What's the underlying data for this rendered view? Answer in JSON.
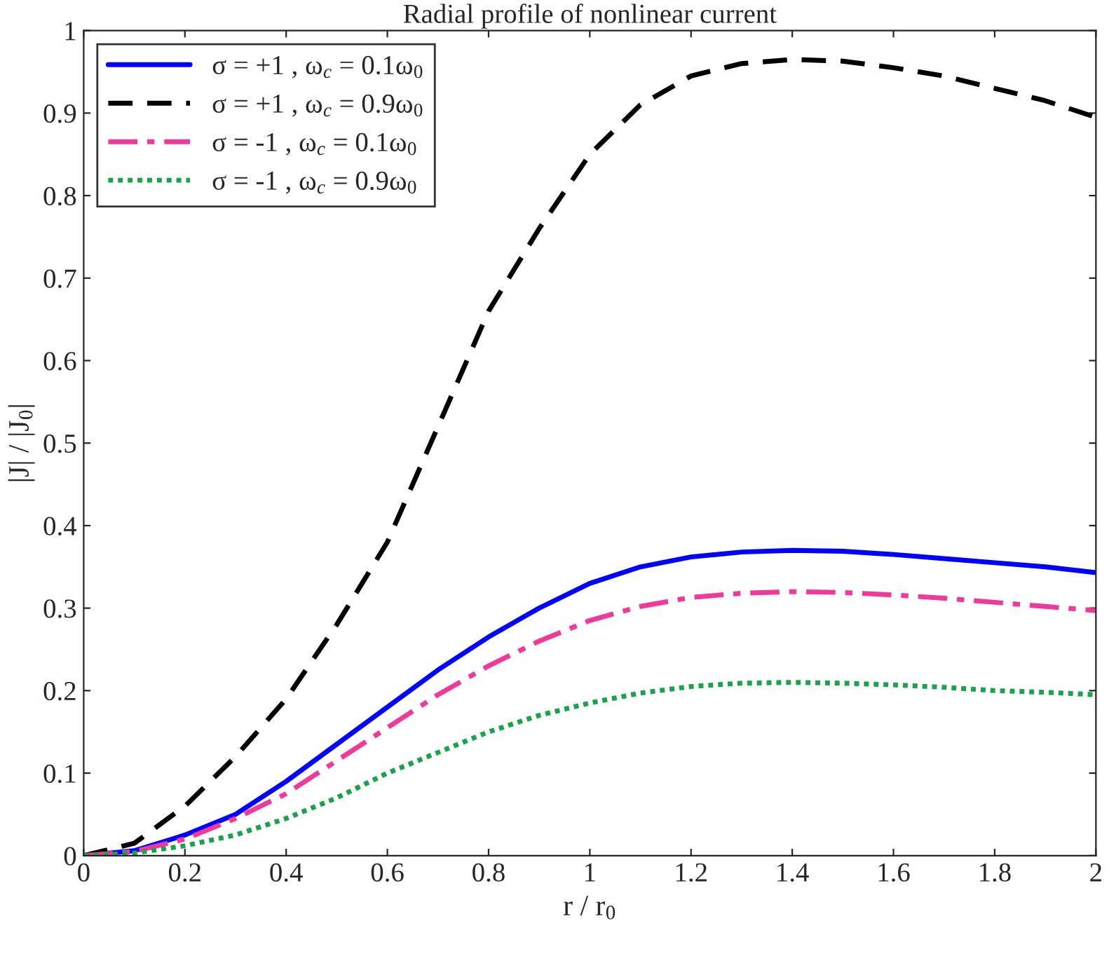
{
  "chart_data": {
    "type": "line",
    "title": "Radial profile of nonlinear current",
    "xlabel": "r / r$_{0}$",
    "ylabel": "|J| / |J$_{0}$|",
    "x": [
      0,
      0.1,
      0.2,
      0.3,
      0.4,
      0.5,
      0.6,
      0.7,
      0.8,
      0.9,
      1.0,
      1.1,
      1.2,
      1.3,
      1.4,
      1.5,
      1.6,
      1.7,
      1.8,
      1.9,
      2.0
    ],
    "series": [
      {
        "name": "σ = +1 , ω$_{c}$ = 0.1ω$_{0}$",
        "color": "#0000ff",
        "line_style": "solid",
        "values": [
          0,
          0.006,
          0.025,
          0.05,
          0.09,
          0.135,
          0.18,
          0.225,
          0.265,
          0.3,
          0.33,
          0.35,
          0.362,
          0.368,
          0.37,
          0.369,
          0.365,
          0.36,
          0.355,
          0.35,
          0.343
        ]
      },
      {
        "name": "σ = +1 , ω$_{c}$ = 0.9ω$_{0}$",
        "color": "#000000",
        "line_style": "dashed",
        "values": [
          0,
          0.015,
          0.06,
          0.12,
          0.19,
          0.28,
          0.38,
          0.52,
          0.66,
          0.76,
          0.85,
          0.91,
          0.945,
          0.96,
          0.965,
          0.963,
          0.955,
          0.945,
          0.93,
          0.915,
          0.895
        ]
      },
      {
        "name": "σ = -1 , ω$_{c}$ = 0.1ω$_{0}$",
        "color": "#ee3a9a",
        "line_style": "dashdot",
        "values": [
          0,
          0.005,
          0.02,
          0.045,
          0.075,
          0.115,
          0.155,
          0.195,
          0.23,
          0.26,
          0.285,
          0.302,
          0.313,
          0.318,
          0.32,
          0.319,
          0.316,
          0.312,
          0.307,
          0.302,
          0.297
        ]
      },
      {
        "name": "σ = -1 , ω$_{c}$ = 0.9ω$_{0}$",
        "color": "#1aa34a",
        "line_style": "dotted",
        "values": [
          0,
          0.003,
          0.012,
          0.025,
          0.045,
          0.07,
          0.1,
          0.125,
          0.15,
          0.17,
          0.185,
          0.197,
          0.205,
          0.209,
          0.21,
          0.209,
          0.207,
          0.204,
          0.2,
          0.198,
          0.195
        ]
      }
    ],
    "xlim": [
      0,
      2
    ],
    "xticks": [
      0,
      0.2,
      0.4,
      0.6,
      0.8,
      1,
      1.2,
      1.4,
      1.6,
      1.8,
      2
    ],
    "ylim": [
      0,
      1
    ],
    "yticks": [
      0,
      0.1,
      0.2,
      0.3,
      0.4,
      0.5,
      0.6,
      0.7,
      0.8,
      0.9,
      1
    ],
    "grid": false,
    "legend": "top left"
  }
}
